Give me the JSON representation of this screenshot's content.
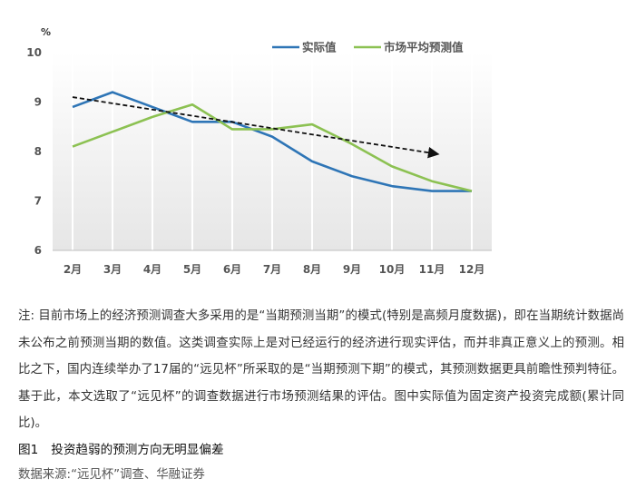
{
  "chart_data": {
    "type": "line",
    "unit_label": "%",
    "categories": [
      "2月",
      "3月",
      "4月",
      "5月",
      "6月",
      "7月",
      "8月",
      "9月",
      "10月",
      "11月",
      "12月"
    ],
    "ylim": [
      6,
      10
    ],
    "yticks": [
      "6",
      "7",
      "8",
      "9",
      "10"
    ],
    "series": [
      {
        "name": "实际值",
        "color": "#2e75b6",
        "values": [
          8.9,
          9.2,
          8.9,
          8.6,
          8.6,
          8.3,
          7.8,
          7.5,
          7.3,
          7.2,
          7.2
        ]
      },
      {
        "name": "市场平均预测值",
        "color": "#8cc152",
        "values": [
          8.1,
          8.4,
          8.7,
          8.95,
          8.45,
          8.45,
          8.55,
          8.15,
          7.7,
          7.4,
          7.2
        ]
      }
    ],
    "trend_arrow": {
      "from": {
        "x": "2月",
        "y": 9.1
      },
      "to": {
        "x": "11月",
        "y": 7.95
      },
      "style": "dashed",
      "color": "#111111"
    },
    "legend_position": "top-right",
    "grid": "vertical"
  },
  "note": "注: 目前市场上的经济预测调查大多采用的是“当期预测当期”的模式(特别是高频月度数据)，即在当期统计数据尚未公布之前预测当期的数值。这类调查实际上是对已经运行的经济进行现实评估，而并非真正意义上的预测。相比之下，国内连续举办了17届的“远见杯”所采取的是“当期预测下期”的模式，其预测数据更具前瞻性预判特征。基于此，本文选取了“远见杯”的调查数据进行市场预测结果的评估。图中实际值为固定资产投资完成额(累计同比)。",
  "caption": {
    "number": "图1",
    "title": "投资趋弱的预测方向无明显偏差"
  },
  "source": "数据来源:“远见杯”调查、华融证券"
}
